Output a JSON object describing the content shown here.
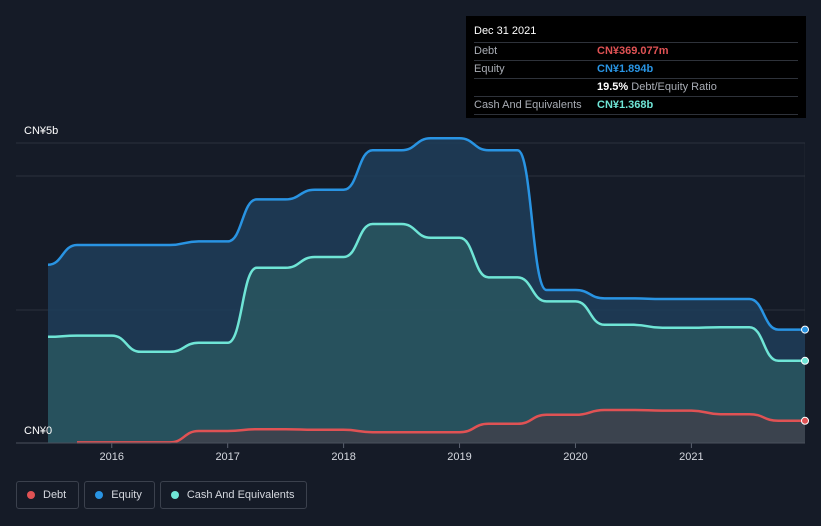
{
  "tooltip": {
    "date": "Dec 31 2021",
    "rows": [
      {
        "label": "Debt",
        "value": "CN¥369.077m",
        "color": "#e05254"
      },
      {
        "label": "Equity",
        "value": "CN¥1.894b",
        "color": "#2994e3"
      },
      {
        "label": "",
        "ratio_value": "19.5%",
        "ratio_label": "Debt/Equity Ratio"
      },
      {
        "label": "Cash And Equivalents",
        "value": "CN¥1.368b",
        "color": "#6fe5d6"
      }
    ]
  },
  "axis": {
    "y_top_label": "CN¥5b",
    "y_bottom_label": "CN¥0"
  },
  "legend": [
    {
      "label": "Debt",
      "color": "#e05254"
    },
    {
      "label": "Equity",
      "color": "#2994e3"
    },
    {
      "label": "Cash And Equivalents",
      "color": "#6fe5d6"
    }
  ],
  "chart_data": {
    "type": "area",
    "currency": "CN¥",
    "unit": "billions",
    "ylim": [
      0,
      5
    ],
    "xlim": [
      2015.45,
      2021.98
    ],
    "x_ticks": [
      2016,
      2017,
      2018,
      2019,
      2020,
      2021
    ],
    "x_tick_labels": [
      "2016",
      "2017",
      "2018",
      "2019",
      "2020",
      "2021"
    ],
    "grid": true,
    "legend_position": "bottom-left",
    "series": [
      {
        "name": "Debt",
        "color": "#e05254",
        "x": [
          2015.7,
          2016.0,
          2016.25,
          2016.5,
          2016.75,
          2017.0,
          2017.25,
          2017.5,
          2017.75,
          2018.0,
          2018.25,
          2018.5,
          2018.75,
          2019.0,
          2019.25,
          2019.5,
          2019.75,
          2020.0,
          2020.25,
          2020.5,
          2020.75,
          2021.0,
          2021.25,
          2021.5,
          2021.75,
          2021.98
        ],
        "y": [
          0.01,
          0.01,
          0.01,
          0.01,
          0.2,
          0.2,
          0.23,
          0.23,
          0.22,
          0.22,
          0.18,
          0.18,
          0.18,
          0.18,
          0.32,
          0.32,
          0.47,
          0.47,
          0.55,
          0.55,
          0.54,
          0.54,
          0.48,
          0.48,
          0.37,
          0.37
        ]
      },
      {
        "name": "Equity",
        "color": "#2994e3",
        "x": [
          2015.45,
          2015.7,
          2016.0,
          2016.25,
          2016.5,
          2016.75,
          2017.0,
          2017.25,
          2017.5,
          2017.75,
          2018.0,
          2018.25,
          2018.5,
          2018.75,
          2019.0,
          2019.25,
          2019.5,
          2019.75,
          2020.0,
          2020.25,
          2020.5,
          2020.75,
          2021.0,
          2021.25,
          2021.5,
          2021.75,
          2021.98
        ],
        "y": [
          2.97,
          3.3,
          3.3,
          3.3,
          3.3,
          3.36,
          3.36,
          4.06,
          4.06,
          4.22,
          4.22,
          4.88,
          4.88,
          5.08,
          5.08,
          4.88,
          4.88,
          2.55,
          2.55,
          2.41,
          2.41,
          2.4,
          2.4,
          2.4,
          2.4,
          1.89,
          1.89
        ]
      },
      {
        "name": "Cash And Equivalents",
        "color": "#6fe5d6",
        "x": [
          2015.45,
          2015.7,
          2016.0,
          2016.25,
          2016.5,
          2016.75,
          2017.0,
          2017.25,
          2017.5,
          2017.75,
          2018.0,
          2018.25,
          2018.5,
          2018.75,
          2019.0,
          2019.25,
          2019.5,
          2019.75,
          2020.0,
          2020.25,
          2020.5,
          2020.75,
          2021.0,
          2021.25,
          2021.5,
          2021.75,
          2021.98
        ],
        "y": [
          1.77,
          1.79,
          1.79,
          1.52,
          1.52,
          1.67,
          1.67,
          2.92,
          2.92,
          3.1,
          3.1,
          3.65,
          3.65,
          3.42,
          3.42,
          2.76,
          2.76,
          2.36,
          2.36,
          1.97,
          1.97,
          1.92,
          1.92,
          1.93,
          1.93,
          1.37,
          1.37
        ]
      }
    ]
  }
}
